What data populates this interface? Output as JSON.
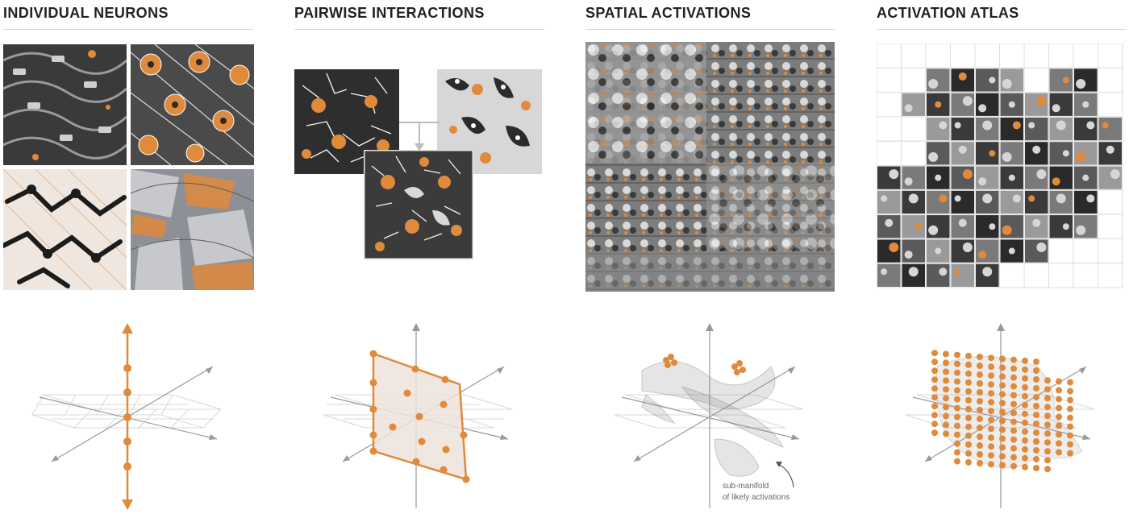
{
  "columns": [
    {
      "title": "INDIVIDUAL NEURONS"
    },
    {
      "title": "PAIRWISE INTERACTIONS"
    },
    {
      "title": "SPATIAL ACTIVATIONS"
    },
    {
      "title": "ACTIVATION ATLAS"
    }
  ],
  "annotation": {
    "line1": "sub-manifold",
    "line2": "of likely activations"
  },
  "colors": {
    "accent": "#e08a3c",
    "fill": "#ede3dc",
    "axis": "#999999",
    "grid": "#d8d8d8",
    "texture_dark": "#2b2b2b",
    "texture_mid": "#8a8a8a"
  }
}
